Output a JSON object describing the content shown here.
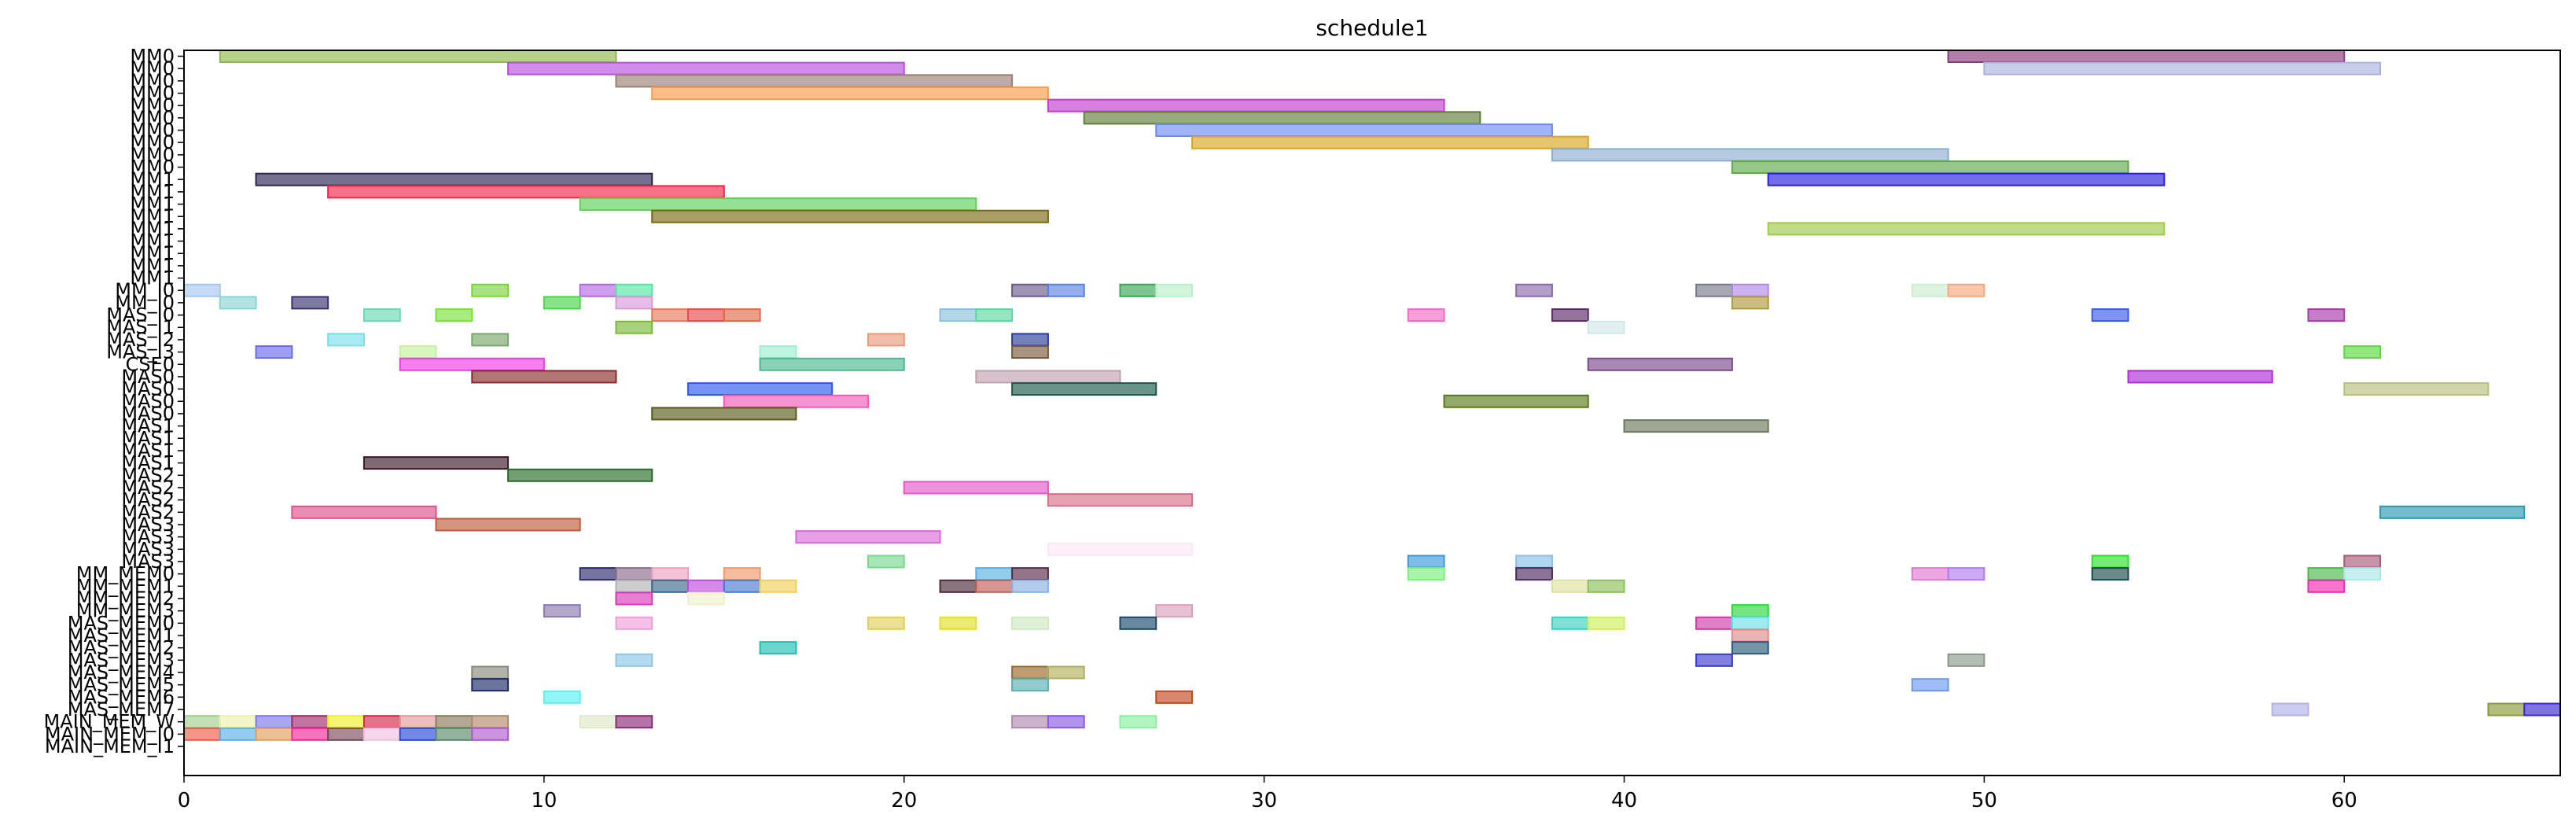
{
  "chart_data": {
    "type": "gantt",
    "title": "schedule1",
    "xlabel": "",
    "ylabel": "",
    "xlim": [
      0,
      66
    ],
    "x_ticks": [
      0,
      10,
      20,
      30,
      40,
      50,
      60
    ],
    "grid": false,
    "legend": "none",
    "rows": [
      "MM0",
      "MM0",
      "MM0",
      "MM0",
      "MM0",
      "MM0",
      "MM0",
      "MM0",
      "MM0",
      "MM0",
      "MM1",
      "MM1",
      "MM1",
      "MM1",
      "MM1",
      "MM1",
      "MM1",
      "MM1",
      "MM1",
      "MM_I0",
      "MM_I0",
      "MAS_I0",
      "MAS_I1",
      "MAS_I2",
      "MAS_I3",
      "CSE0",
      "MAS0",
      "MAS0",
      "MAS0",
      "MAS0",
      "MAS1",
      "MAS1",
      "MAS1",
      "MAS1",
      "MAS2",
      "MAS2",
      "MAS2",
      "MAS2",
      "MAS3",
      "MAS3",
      "MAS3",
      "MAS3",
      "MM_MEM0",
      "MM_MEM1",
      "MM_MEM2",
      "MM_MEM3",
      "MAS_MEM0",
      "MAS_MEM1",
      "MAS_MEM2",
      "MAS_MEM3",
      "MAS_MEM4",
      "MAS_MEM5",
      "MAS_MEM6",
      "MAS_MEM7",
      "MAIN_MEM_W",
      "MAIN_MEM_I0",
      "MAIN_MEM_I1"
    ],
    "tasks": [
      {
        "row": 0,
        "start": 1,
        "end": 12,
        "color": "#8fb84a"
      },
      {
        "row": 0,
        "start": 49,
        "end": 60,
        "color": "#8b3a7a"
      },
      {
        "row": 1,
        "start": 9,
        "end": 20,
        "color": "#b94ee0"
      },
      {
        "row": 1,
        "start": 50,
        "end": 61,
        "color": "#aab3dd"
      },
      {
        "row": 2,
        "start": 12,
        "end": 23,
        "color": "#9a7f74"
      },
      {
        "row": 3,
        "start": 13,
        "end": 24,
        "color": "#ff9a4a"
      },
      {
        "row": 4,
        "start": 24,
        "end": 35,
        "color": "#c53ad1"
      },
      {
        "row": 5,
        "start": 25,
        "end": 36,
        "color": "#5f7e3a"
      },
      {
        "row": 6,
        "start": 27,
        "end": 38,
        "color": "#6e8cf0"
      },
      {
        "row": 7,
        "start": 28,
        "end": 39,
        "color": "#d8a61e"
      },
      {
        "row": 8,
        "start": 38,
        "end": 49,
        "color": "#8aaed0"
      },
      {
        "row": 9,
        "start": 43,
        "end": 54,
        "color": "#5fa84a"
      },
      {
        "row": 10,
        "start": 44,
        "end": 55,
        "color": "#2a1ee0"
      },
      {
        "row": 10,
        "start": 2,
        "end": 13,
        "color": "#2a2450"
      },
      {
        "row": 11,
        "start": 4,
        "end": 15,
        "color": "#f02848"
      },
      {
        "row": 12,
        "start": 11,
        "end": 22,
        "color": "#5ed05a"
      },
      {
        "row": 13,
        "start": 13,
        "end": 24,
        "color": "#7a6a14"
      },
      {
        "row": 14,
        "start": 44,
        "end": 55,
        "color": "#9fca4a"
      },
      {
        "row": 19,
        "start": 0,
        "end": 1,
        "color": "#a6c6ee"
      },
      {
        "row": 19,
        "start": 8,
        "end": 9,
        "color": "#7ad43a"
      },
      {
        "row": 19,
        "start": 11,
        "end": 12,
        "color": "#b06ae0"
      },
      {
        "row": 19,
        "start": 12,
        "end": 13,
        "color": "#52e8a0"
      },
      {
        "row": 19,
        "start": 23,
        "end": 24,
        "color": "#6a5a8a"
      },
      {
        "row": 19,
        "start": 24,
        "end": 25,
        "color": "#5a82e0"
      },
      {
        "row": 19,
        "start": 26,
        "end": 27,
        "color": "#3aa65a"
      },
      {
        "row": 19,
        "start": 27,
        "end": 28,
        "color": "#b8f0c8"
      },
      {
        "row": 19,
        "start": 37,
        "end": 38,
        "color": "#8a6aaa"
      },
      {
        "row": 19,
        "start": 42,
        "end": 43,
        "color": "#7a7a8a"
      },
      {
        "row": 19,
        "start": 43,
        "end": 44,
        "color": "#b08ae8"
      },
      {
        "row": 19,
        "start": 48,
        "end": 49,
        "color": "#cdeed0"
      },
      {
        "row": 19,
        "start": 49,
        "end": 50,
        "color": "#f4a880"
      },
      {
        "row": 20,
        "start": 1,
        "end": 2,
        "color": "#8cd4d4"
      },
      {
        "row": 20,
        "start": 3,
        "end": 4,
        "color": "#3a3270"
      },
      {
        "row": 20,
        "start": 10,
        "end": 11,
        "color": "#4ad64a"
      },
      {
        "row": 20,
        "start": 12,
        "end": 13,
        "color": "#d89ad8"
      },
      {
        "row": 20,
        "start": 43,
        "end": 44,
        "color": "#b09a40"
      },
      {
        "row": 21,
        "start": 5,
        "end": 6,
        "color": "#6ad8b4"
      },
      {
        "row": 21,
        "start": 7,
        "end": 8,
        "color": "#7ae03a"
      },
      {
        "row": 21,
        "start": 13,
        "end": 14,
        "color": "#e8785a"
      },
      {
        "row": 21,
        "start": 14,
        "end": 15,
        "color": "#e84a4a"
      },
      {
        "row": 21,
        "start": 15,
        "end": 16,
        "color": "#e06a4a"
      },
      {
        "row": 21,
        "start": 21,
        "end": 22,
        "color": "#8ac0e0"
      },
      {
        "row": 21,
        "start": 22,
        "end": 23,
        "color": "#5ad8a0"
      },
      {
        "row": 21,
        "start": 34,
        "end": 35,
        "color": "#f06ac8"
      },
      {
        "row": 21,
        "start": 38,
        "end": 39,
        "color": "#5a2a6a"
      },
      {
        "row": 21,
        "start": 53,
        "end": 54,
        "color": "#3a5ae8"
      },
      {
        "row": 21,
        "start": 59,
        "end": 60,
        "color": "#a83aa8"
      },
      {
        "row": 22,
        "start": 12,
        "end": 13,
        "color": "#7ab83a"
      },
      {
        "row": 22,
        "start": 39,
        "end": 40,
        "color": "#d0e8e8"
      },
      {
        "row": 23,
        "start": 4,
        "end": 5,
        "color": "#7ae0e8"
      },
      {
        "row": 23,
        "start": 8,
        "end": 9,
        "color": "#7aa86a"
      },
      {
        "row": 23,
        "start": 19,
        "end": 20,
        "color": "#e89a7a"
      },
      {
        "row": 23,
        "start": 23,
        "end": 24,
        "color": "#2a3a9a"
      },
      {
        "row": 24,
        "start": 2,
        "end": 3,
        "color": "#6a6af0"
      },
      {
        "row": 24,
        "start": 6,
        "end": 7,
        "color": "#c8f0a0"
      },
      {
        "row": 24,
        "start": 16,
        "end": 17,
        "color": "#9af0d0"
      },
      {
        "row": 24,
        "start": 23,
        "end": 24,
        "color": "#7a5a3a"
      },
      {
        "row": 24,
        "start": 60,
        "end": 61,
        "color": "#5ad83a"
      },
      {
        "row": 25,
        "start": 6,
        "end": 10,
        "color": "#f03ae8"
      },
      {
        "row": 25,
        "start": 16,
        "end": 20,
        "color": "#4ab890"
      },
      {
        "row": 25,
        "start": 39,
        "end": 43,
        "color": "#7a4a8a"
      },
      {
        "row": 26,
        "start": 8,
        "end": 12,
        "color": "#8a2a2a"
      },
      {
        "row": 26,
        "start": 22,
        "end": 26,
        "color": "#c0a0b0"
      },
      {
        "row": 26,
        "start": 54,
        "end": 58,
        "color": "#b02ad8"
      },
      {
        "row": 27,
        "start": 14,
        "end": 18,
        "color": "#2a5aea"
      },
      {
        "row": 27,
        "start": 23,
        "end": 27,
        "color": "#1a5a4a"
      },
      {
        "row": 27,
        "start": 60,
        "end": 64,
        "color": "#b8c07a"
      },
      {
        "row": 28,
        "start": 15,
        "end": 19,
        "color": "#f05ab8"
      },
      {
        "row": 28,
        "start": 35,
        "end": 39,
        "color": "#5a7a1a"
      },
      {
        "row": 29,
        "start": 13,
        "end": 17,
        "color": "#5a5a1a"
      },
      {
        "row": 30,
        "start": 40,
        "end": 44,
        "color": "#6a7a5a"
      },
      {
        "row": 33,
        "start": 5,
        "end": 9,
        "color": "#3a1a2a"
      },
      {
        "row": 34,
        "start": 9,
        "end": 13,
        "color": "#2a6a2a"
      },
      {
        "row": 35,
        "start": 20,
        "end": 24,
        "color": "#e05ac8"
      },
      {
        "row": 36,
        "start": 24,
        "end": 28,
        "color": "#d8708a"
      },
      {
        "row": 37,
        "start": 3,
        "end": 7,
        "color": "#e0508a"
      },
      {
        "row": 37,
        "start": 61,
        "end": 65,
        "color": "#2a9ab0"
      },
      {
        "row": 38,
        "start": 7,
        "end": 11,
        "color": "#c05a3a"
      },
      {
        "row": 39,
        "start": 17,
        "end": 21,
        "color": "#d86ad8"
      },
      {
        "row": 40,
        "start": 24,
        "end": 28,
        "color": "#fae8f8"
      },
      {
        "row": 41,
        "start": 19,
        "end": 20,
        "color": "#7ad890"
      },
      {
        "row": 41,
        "start": 34,
        "end": 35,
        "color": "#3a9ad8"
      },
      {
        "row": 41,
        "start": 37,
        "end": 38,
        "color": "#8ac0e8"
      },
      {
        "row": 41,
        "start": 53,
        "end": 54,
        "color": "#2ae02a"
      },
      {
        "row": 41,
        "start": 60,
        "end": 61,
        "color": "#a85a7a"
      },
      {
        "row": 42,
        "start": 11,
        "end": 12,
        "color": "#2a2a6a"
      },
      {
        "row": 42,
        "start": 12,
        "end": 13,
        "color": "#8a6a8a"
      },
      {
        "row": 42,
        "start": 13,
        "end": 14,
        "color": "#f0a0c0"
      },
      {
        "row": 42,
        "start": 15,
        "end": 16,
        "color": "#f09a6a"
      },
      {
        "row": 42,
        "start": 22,
        "end": 23,
        "color": "#5ab0e0"
      },
      {
        "row": 42,
        "start": 23,
        "end": 24,
        "color": "#5a2a4a"
      },
      {
        "row": 42,
        "start": 34,
        "end": 35,
        "color": "#7af07a"
      },
      {
        "row": 42,
        "start": 37,
        "end": 38,
        "color": "#4a2a5a"
      },
      {
        "row": 42,
        "start": 48,
        "end": 49,
        "color": "#e07ad0"
      },
      {
        "row": 42,
        "start": 49,
        "end": 50,
        "color": "#b07af0"
      },
      {
        "row": 42,
        "start": 53,
        "end": 54,
        "color": "#1a4a4a"
      },
      {
        "row": 42,
        "start": 59,
        "end": 60,
        "color": "#4ab84a"
      },
      {
        "row": 42,
        "start": 60,
        "end": 61,
        "color": "#a8e8e8"
      },
      {
        "row": 43,
        "start": 12,
        "end": 13,
        "color": "#b0b0b0"
      },
      {
        "row": 43,
        "start": 13,
        "end": 14,
        "color": "#3a6a8a"
      },
      {
        "row": 43,
        "start": 14,
        "end": 15,
        "color": "#c04ae0"
      },
      {
        "row": 43,
        "start": 15,
        "end": 16,
        "color": "#4a7ad0"
      },
      {
        "row": 43,
        "start": 16,
        "end": 17,
        "color": "#f0d05a"
      },
      {
        "row": 43,
        "start": 21,
        "end": 22,
        "color": "#4a2a3a"
      },
      {
        "row": 43,
        "start": 22,
        "end": 23,
        "color": "#c0605a"
      },
      {
        "row": 43,
        "start": 23,
        "end": 24,
        "color": "#8ab0e0"
      },
      {
        "row": 43,
        "start": 38,
        "end": 39,
        "color": "#e0e0a0"
      },
      {
        "row": 43,
        "start": 39,
        "end": 40,
        "color": "#8ac05a"
      },
      {
        "row": 43,
        "start": 59,
        "end": 60,
        "color": "#f02ab0"
      },
      {
        "row": 44,
        "start": 12,
        "end": 13,
        "color": "#d83ab8"
      },
      {
        "row": 44,
        "start": 14,
        "end": 15,
        "color": "#f0f0d0"
      },
      {
        "row": 45,
        "start": 10,
        "end": 11,
        "color": "#8a7ab0"
      },
      {
        "row": 45,
        "start": 27,
        "end": 28,
        "color": "#d8a0b8"
      },
      {
        "row": 45,
        "start": 43,
        "end": 44,
        "color": "#2ad83a"
      },
      {
        "row": 46,
        "start": 12,
        "end": 13,
        "color": "#f0a0d8"
      },
      {
        "row": 46,
        "start": 19,
        "end": 20,
        "color": "#e0d05a"
      },
      {
        "row": 46,
        "start": 21,
        "end": 22,
        "color": "#e0e02a"
      },
      {
        "row": 46,
        "start": 23,
        "end": 24,
        "color": "#d0e8c0"
      },
      {
        "row": 46,
        "start": 26,
        "end": 27,
        "color": "#1a4a6a"
      },
      {
        "row": 46,
        "start": 38,
        "end": 39,
        "color": "#3ad0c0"
      },
      {
        "row": 46,
        "start": 39,
        "end": 40,
        "color": "#d0f05a"
      },
      {
        "row": 46,
        "start": 42,
        "end": 43,
        "color": "#d03aa8"
      },
      {
        "row": 46,
        "start": 43,
        "end": 44,
        "color": "#6ae0e8"
      },
      {
        "row": 47,
        "start": 43,
        "end": 44,
        "color": "#e08a8a"
      },
      {
        "row": 48,
        "start": 16,
        "end": 17,
        "color": "#1ac0b0"
      },
      {
        "row": 48,
        "start": 43,
        "end": 44,
        "color": "#2a5a7a"
      },
      {
        "row": 49,
        "start": 12,
        "end": 13,
        "color": "#8ac8e8"
      },
      {
        "row": 49,
        "start": 42,
        "end": 43,
        "color": "#3a3ad0"
      },
      {
        "row": 49,
        "start": 49,
        "end": 50,
        "color": "#8a9a8a"
      },
      {
        "row": 50,
        "start": 8,
        "end": 9,
        "color": "#8a8a7a"
      },
      {
        "row": 50,
        "start": 23,
        "end": 24,
        "color": "#9a6a2a"
      },
      {
        "row": 50,
        "start": 24,
        "end": 25,
        "color": "#b0b05a"
      },
      {
        "row": 51,
        "start": 8,
        "end": 9,
        "color": "#1a2a6a"
      },
      {
        "row": 51,
        "start": 23,
        "end": 24,
        "color": "#5ab0b0"
      },
      {
        "row": 51,
        "start": 48,
        "end": 49,
        "color": "#6a9af0"
      },
      {
        "row": 52,
        "start": 10,
        "end": 11,
        "color": "#5af0f0"
      },
      {
        "row": 52,
        "start": 27,
        "end": 28,
        "color": "#c04a1a"
      },
      {
        "row": 53,
        "start": 58,
        "end": 59,
        "color": "#b0b0e8"
      },
      {
        "row": 53,
        "start": 64,
        "end": 65,
        "color": "#8a9a3a"
      },
      {
        "row": 53,
        "start": 65,
        "end": 66,
        "color": "#3a2ad0"
      },
      {
        "row": 54,
        "start": 0,
        "end": 1,
        "color": "#a0d08a"
      },
      {
        "row": 54,
        "start": 1,
        "end": 2,
        "color": "#f0f0b0"
      },
      {
        "row": 54,
        "start": 2,
        "end": 3,
        "color": "#7a7ae8"
      },
      {
        "row": 54,
        "start": 3,
        "end": 4,
        "color": "#a02a6a"
      },
      {
        "row": 54,
        "start": 4,
        "end": 5,
        "color": "#f0f02a"
      },
      {
        "row": 54,
        "start": 5,
        "end": 6,
        "color": "#d02a4a"
      },
      {
        "row": 54,
        "start": 6,
        "end": 7,
        "color": "#e09a9a"
      },
      {
        "row": 54,
        "start": 7,
        "end": 8,
        "color": "#8a7a5a"
      },
      {
        "row": 54,
        "start": 8,
        "end": 9,
        "color": "#b08a6a"
      },
      {
        "row": 54,
        "start": 11,
        "end": 12,
        "color": "#e0e8c8"
      },
      {
        "row": 54,
        "start": 12,
        "end": 13,
        "color": "#8a2a7a"
      },
      {
        "row": 54,
        "start": 23,
        "end": 24,
        "color": "#b08ab0"
      },
      {
        "row": 54,
        "start": 24,
        "end": 25,
        "color": "#8a5ae0"
      },
      {
        "row": 54,
        "start": 26,
        "end": 27,
        "color": "#8af0a0"
      },
      {
        "row": 55,
        "start": 0,
        "end": 1,
        "color": "#f05a4a"
      },
      {
        "row": 55,
        "start": 1,
        "end": 2,
        "color": "#5ab0e8"
      },
      {
        "row": 55,
        "start": 2,
        "end": 3,
        "color": "#e0a05a"
      },
      {
        "row": 55,
        "start": 3,
        "end": 4,
        "color": "#f02a9a"
      },
      {
        "row": 55,
        "start": 4,
        "end": 5,
        "color": "#7a4a5a"
      },
      {
        "row": 55,
        "start": 5,
        "end": 6,
        "color": "#f0c0e0"
      },
      {
        "row": 55,
        "start": 6,
        "end": 7,
        "color": "#2a4ad8"
      },
      {
        "row": 55,
        "start": 7,
        "end": 8,
        "color": "#5a8a6a"
      },
      {
        "row": 55,
        "start": 8,
        "end": 9,
        "color": "#b05ad0"
      }
    ]
  }
}
